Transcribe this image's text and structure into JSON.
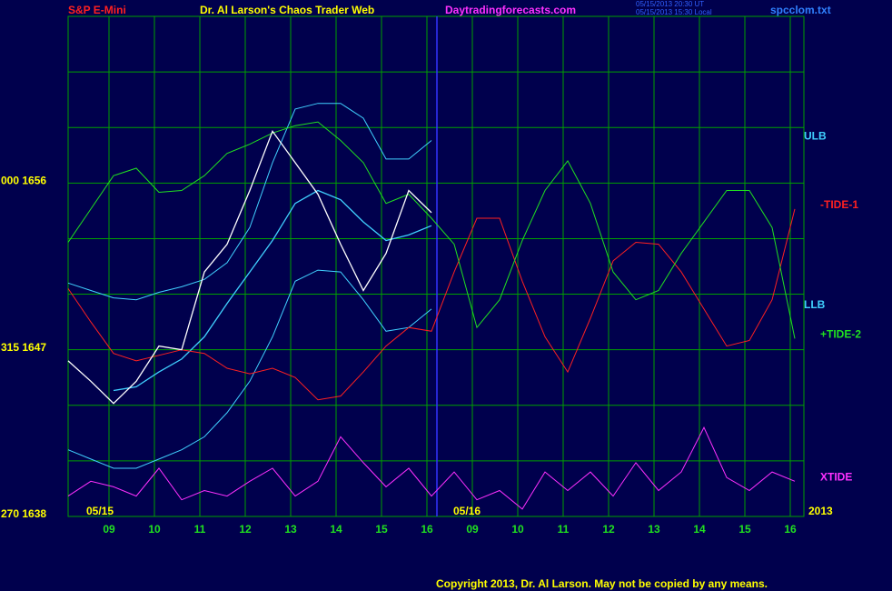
{
  "chart_data": {
    "type": "line",
    "title": "S&P E-Mini",
    "subtitle": "Dr. Al Larson's Chaos Trader Web",
    "site": "Daytradingforecasts.com",
    "timestamps": [
      "05/15/2013 20:30 UT",
      "05/15/2013 15:30 Local"
    ],
    "file": "spcclom.txt",
    "copyright": "Copyright 2013, Dr. Al Larson. May not be copied by any means.",
    "dates": [
      "05/15",
      "05/16"
    ],
    "year": "2013",
    "session_break": 8.22,
    "xlim": [
      0.1,
      16.3
    ],
    "xticks": [
      {
        "value": 1,
        "label": "09"
      },
      {
        "value": 2,
        "label": "10"
      },
      {
        "value": 3,
        "label": "11"
      },
      {
        "value": 4,
        "label": "12"
      },
      {
        "value": 5,
        "label": "13"
      },
      {
        "value": 6,
        "label": "14"
      },
      {
        "value": 7,
        "label": "15"
      },
      {
        "value": 8,
        "label": "16"
      },
      {
        "value": 9,
        "label": "09"
      },
      {
        "value": 10,
        "label": "10"
      },
      {
        "value": 11,
        "label": "11"
      },
      {
        "value": 12,
        "label": "12"
      },
      {
        "value": 13,
        "label": "13"
      },
      {
        "value": 14,
        "label": "14"
      },
      {
        "value": 15,
        "label": "15"
      },
      {
        "value": 16,
        "label": "16"
      }
    ],
    "ylim": [
      1638,
      1665
    ],
    "ygrid": [
      1638,
      1641,
      1644,
      1647,
      1650,
      1653,
      1656,
      1659,
      1662,
      1665
    ],
    "yticks": [
      {
        "value": 1656,
        "label": "000 1656"
      },
      {
        "value": 1647,
        "label": "315 1647"
      },
      {
        "value": 1638,
        "label": "270 1638"
      }
    ],
    "grid": true,
    "x": [
      0.1,
      0.6,
      1.1,
      1.6,
      2.1,
      2.6,
      3.1,
      3.6,
      4.1,
      4.6,
      5.1,
      5.6,
      6.1,
      6.6,
      7.1,
      7.6,
      8.1,
      8.6,
      9.1,
      9.6,
      10.1,
      10.6,
      11.1,
      11.6,
      12.1,
      12.6,
      13.1,
      13.6,
      14.1,
      14.6,
      15.1,
      15.6,
      16.1
    ],
    "series": [
      {
        "color": "#40d0ff",
        "values": [
          null,
          null,
          1644.8,
          1645.0,
          1645.8,
          1646.5,
          1647.7,
          1649.5,
          1651.2,
          1652.9,
          1654.9,
          1655.6,
          1655.1,
          1653.9,
          1652.9,
          1653.2,
          1653.7,
          null,
          null,
          null,
          null,
          null,
          null,
          null,
          null,
          null,
          null,
          null,
          null,
          null,
          null,
          null,
          null
        ]
      },
      {
        "name": "ULB",
        "color": "#40d0ff",
        "values": [
          1650.6,
          1650.2,
          1649.8,
          1649.7,
          1650.1,
          1650.4,
          1650.8,
          1651.7,
          1653.6,
          1657.1,
          1660.0,
          1660.3,
          1660.3,
          1659.5,
          1657.3,
          1657.3,
          1658.3,
          null,
          null,
          null,
          null,
          null,
          null,
          null,
          null,
          null,
          null,
          null,
          null,
          null,
          null,
          null,
          null
        ]
      },
      {
        "name": "LLB",
        "color": "#40d0ff",
        "values": [
          1641.6,
          1641.1,
          1640.6,
          1640.6,
          1641.1,
          1641.6,
          1642.3,
          1643.6,
          1645.3,
          1647.7,
          1650.7,
          1651.3,
          1651.2,
          1649.7,
          1648.0,
          1648.2,
          1649.2,
          null,
          null,
          null,
          null,
          null,
          null,
          null,
          null,
          null,
          null,
          null,
          null,
          null,
          null,
          null,
          null
        ]
      },
      {
        "name": "-TIDE-1",
        "color": "#ff2020",
        "values": [
          1650.3,
          1648.5,
          1646.8,
          1646.4,
          1646.7,
          1647.0,
          1646.8,
          1646.0,
          1645.7,
          1646.0,
          1645.5,
          1644.3,
          1644.5,
          1645.8,
          1647.2,
          1648.2,
          1648.0,
          1651.2,
          1654.1,
          1654.1,
          1650.7,
          1647.7,
          1645.8,
          1648.7,
          1651.8,
          1652.8,
          1652.7,
          1651.2,
          1649.2,
          1647.2,
          1647.5,
          1649.7,
          1654.6
        ]
      },
      {
        "name": "+TIDE-2",
        "color": "#20e020",
        "values": [
          1652.8,
          1654.6,
          1656.4,
          1656.8,
          1655.5,
          1655.6,
          1656.4,
          1657.6,
          1658.1,
          1658.7,
          1659.1,
          1659.3,
          1658.3,
          1657.1,
          1654.9,
          1655.4,
          1654.1,
          1652.7,
          1648.2,
          1649.7,
          1652.9,
          1655.6,
          1657.2,
          1654.9,
          1651.2,
          1649.7,
          1650.2,
          1652.2,
          1653.9,
          1655.6,
          1655.6,
          1653.6,
          1647.6
        ]
      },
      {
        "name": "XTIDE",
        "color": "#ff30ff",
        "values": [
          1639.1,
          1639.9,
          1639.6,
          1639.1,
          1640.6,
          1638.9,
          1639.4,
          1639.1,
          1639.9,
          1640.6,
          1639.1,
          1639.9,
          1642.3,
          1640.9,
          1639.6,
          1640.6,
          1639.1,
          1640.4,
          1638.9,
          1639.4,
          1638.4,
          1640.4,
          1639.4,
          1640.4,
          1639.1,
          1640.9,
          1639.4,
          1640.4,
          1642.8,
          1640.1,
          1639.4,
          1640.4,
          1639.9
        ]
      },
      {
        "color": "#ffffff",
        "values": [
          1646.4,
          1645.3,
          1644.1,
          1645.3,
          1647.2,
          1647.0,
          1651.2,
          1652.7,
          1655.6,
          1658.8,
          1657.1,
          1655.4,
          1652.7,
          1650.2,
          1652.2,
          1655.6,
          1654.4,
          null,
          null,
          null,
          null,
          null,
          null,
          null,
          null,
          null,
          null,
          null,
          null,
          null,
          null,
          null,
          null
        ]
      }
    ]
  }
}
